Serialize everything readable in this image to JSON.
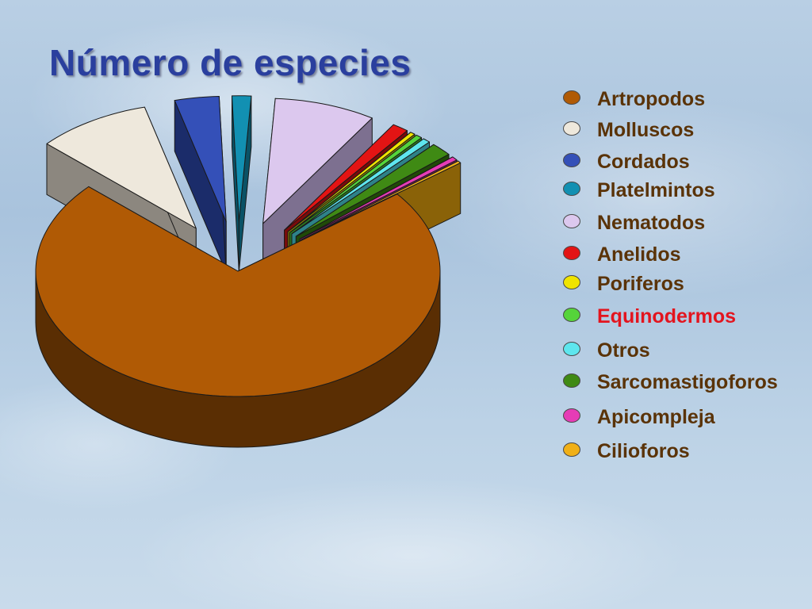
{
  "chart_data": {
    "type": "pie",
    "title": "Número de especies",
    "legend_position": "right",
    "exploded": true,
    "three_d": true,
    "slices": [
      {
        "label": "Artropodos",
        "value": 71.4,
        "color": "#b05a05",
        "side_color": "#5a2e03"
      },
      {
        "label": "Molluscos",
        "value": 9.0,
        "color": "#eee8dc",
        "side_color": "#8c877f"
      },
      {
        "label": "Cordados",
        "value": 3.5,
        "color": "#3450b8",
        "side_color": "#1b2c6a"
      },
      {
        "label": "Platelmintos",
        "value": 1.5,
        "color": "#1290b2",
        "side_color": "#0a5266"
      },
      {
        "label": "Nematodos",
        "value": 8.0,
        "color": "#dcc8ee",
        "side_color": "#7d7090"
      },
      {
        "label": "Anelidos",
        "value": 1.3,
        "color": "#e31414",
        "side_color": "#7a0b0b"
      },
      {
        "label": "Poriferos",
        "value": 0.4,
        "color": "#f0e400",
        "side_color": "#8a8300"
      },
      {
        "label": "Equinodermos",
        "value": 0.5,
        "color": "#55d43a",
        "side_color": "#2c7a1d",
        "label_color": "#e3141e"
      },
      {
        "label": "Otros",
        "value": 0.6,
        "color": "#5ee6ee",
        "side_color": "#2e8288"
      },
      {
        "label": "Sarcomastigoforos",
        "value": 1.7,
        "color": "#3f8a14",
        "side_color": "#204a08"
      },
      {
        "label": "Apicompleja",
        "value": 0.5,
        "color": "#e63cb6",
        "side_color": "#80205f"
      },
      {
        "label": "Cilioforos",
        "value": 0.3,
        "color": "#f0b018",
        "side_color": "#8a6208"
      }
    ]
  }
}
